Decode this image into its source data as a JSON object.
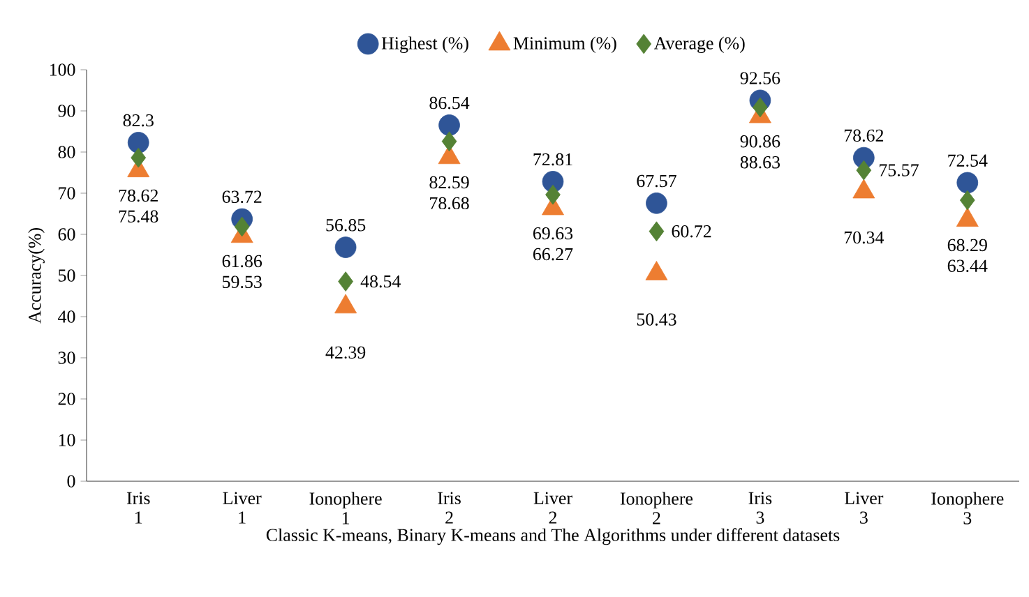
{
  "chart_data": {
    "type": "scatter",
    "xlabel": "Classic K-means, Binary K-means and The Algorithms under different datasets",
    "ylabel": "Accuracy(%)",
    "categories": [
      "Iris 1",
      "Liver 1",
      "Ionophere 1",
      "Iris 2",
      "Liver 2",
      "Ionophere 2",
      "Iris 3",
      "Liver 3",
      "Ionophere 3"
    ],
    "series": [
      {
        "name": "Highest (%)",
        "color": "#2f5597",
        "marker": "circle",
        "values": [
          82.3,
          63.72,
          56.85,
          86.54,
          72.81,
          67.57,
          92.56,
          78.62,
          72.54
        ]
      },
      {
        "name": "Minimum (%)",
        "color": "#ed7d31",
        "marker": "triangle",
        "values": [
          75.48,
          59.53,
          42.39,
          78.68,
          66.27,
          50.43,
          88.63,
          70.34,
          63.44
        ]
      },
      {
        "name": "Average (%)",
        "color": "#548235",
        "marker": "diamond",
        "values": [
          78.62,
          61.86,
          48.54,
          82.59,
          69.63,
          60.72,
          90.86,
          75.57,
          68.29
        ]
      }
    ],
    "ylim": [
      0,
      100
    ],
    "yticks": [
      0,
      10,
      20,
      30,
      40,
      50,
      60,
      70,
      80,
      90,
      100
    ],
    "data_labels": true,
    "legend": "top",
    "grid": false
  }
}
